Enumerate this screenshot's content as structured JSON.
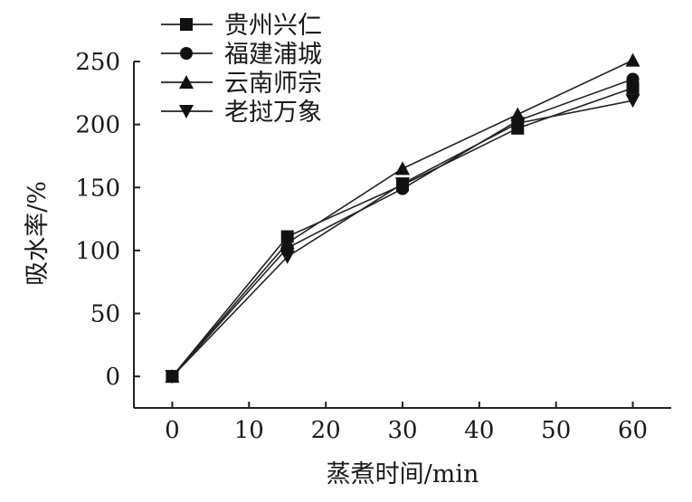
{
  "chart_data": {
    "type": "line",
    "title": "",
    "xlabel": "蒸煮时间/min",
    "ylabel": "吸水率/%",
    "x": [
      0,
      15,
      30,
      45,
      60
    ],
    "xlim": [
      -5,
      65
    ],
    "ylim": [
      -25,
      250
    ],
    "xticks": [
      0,
      10,
      20,
      30,
      40,
      50,
      60
    ],
    "yticks": [
      0,
      50,
      100,
      150,
      200,
      250
    ],
    "legend_position": "top-left",
    "grid": false,
    "series": [
      {
        "name": "贵州兴仁",
        "marker": "square",
        "values": [
          0,
          111,
          152,
          197,
          229
        ]
      },
      {
        "name": "福建浦城",
        "marker": "circle",
        "values": [
          0,
          102,
          149,
          203,
          236
        ]
      },
      {
        "name": "云南师宗",
        "marker": "triangle-up",
        "values": [
          0,
          106,
          165,
          208,
          251
        ]
      },
      {
        "name": "老挝万象",
        "marker": "triangle-down",
        "values": [
          0,
          95,
          153,
          201,
          219
        ]
      }
    ]
  }
}
